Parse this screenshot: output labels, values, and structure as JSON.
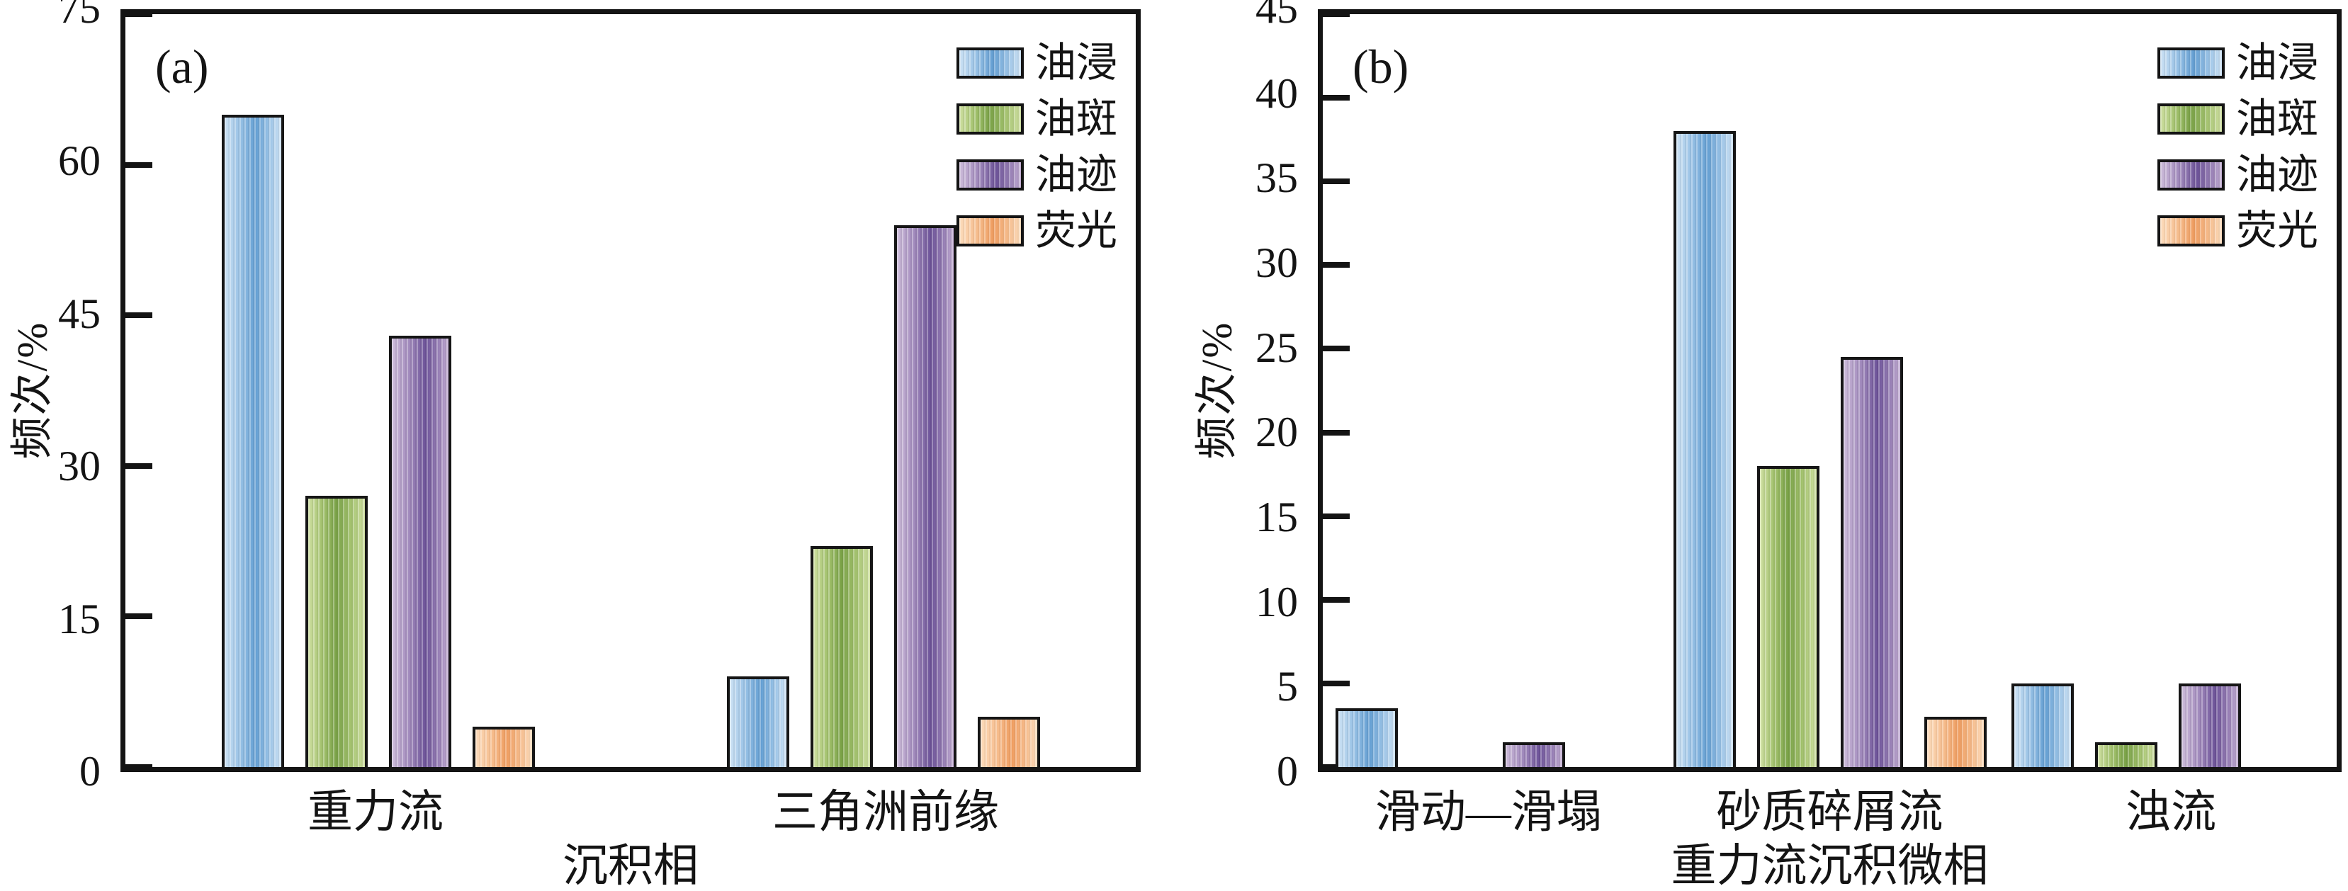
{
  "colors": {
    "axis": "#141414",
    "bar_border": "#161616",
    "blue": "#649fd3",
    "green": "#7aa247",
    "purple": "#6d5399",
    "orange": "#ef9d60"
  },
  "legend_labels": [
    "油浸",
    "油斑",
    "油迹",
    "荧光"
  ],
  "chart_data": [
    {
      "type": "bar",
      "panel_label": "(a)",
      "xlabel": "沉积相",
      "ylabel": "频次/%",
      "ylim": [
        0,
        75
      ],
      "ytick_step": 15,
      "yticks": [
        0,
        15,
        30,
        45,
        60,
        75
      ],
      "grid": false,
      "legend_position": "top-right",
      "categories": [
        "重力流",
        "三角洲前缘"
      ],
      "series": [
        {
          "name": "油浸",
          "color_key": "blue",
          "color": "#649fd3",
          "values": [
            65,
            9
          ]
        },
        {
          "name": "油斑",
          "color_key": "green",
          "color": "#7aa247",
          "values": [
            27,
            22
          ]
        },
        {
          "name": "油迹",
          "color_key": "purple",
          "color": "#6d5399",
          "values": [
            43,
            54
          ]
        },
        {
          "name": "荧光",
          "color_key": "orange",
          "color": "#ef9d60",
          "values": [
            4,
            5
          ]
        }
      ]
    },
    {
      "type": "bar",
      "panel_label": "(b)",
      "xlabel": "重力流沉积微相",
      "ylabel": "频次/%",
      "ylim": [
        0,
        45
      ],
      "ytick_step": 5,
      "yticks": [
        0,
        5,
        10,
        15,
        20,
        25,
        30,
        35,
        40,
        45
      ],
      "grid": false,
      "legend_position": "top-right",
      "categories": [
        "滑动—滑塌",
        "砂质碎屑流",
        "浊流"
      ],
      "series": [
        {
          "name": "油浸",
          "color_key": "blue",
          "color": "#649fd3",
          "values": [
            3.5,
            38,
            5
          ]
        },
        {
          "name": "油斑",
          "color_key": "green",
          "color": "#7aa247",
          "values": [
            0,
            18,
            1.5
          ]
        },
        {
          "name": "油迹",
          "color_key": "purple",
          "color": "#6d5399",
          "values": [
            1.5,
            24.5,
            5
          ]
        },
        {
          "name": "荧光",
          "color_key": "orange",
          "color": "#ef9d60",
          "values": [
            0,
            3,
            0
          ]
        }
      ]
    }
  ]
}
